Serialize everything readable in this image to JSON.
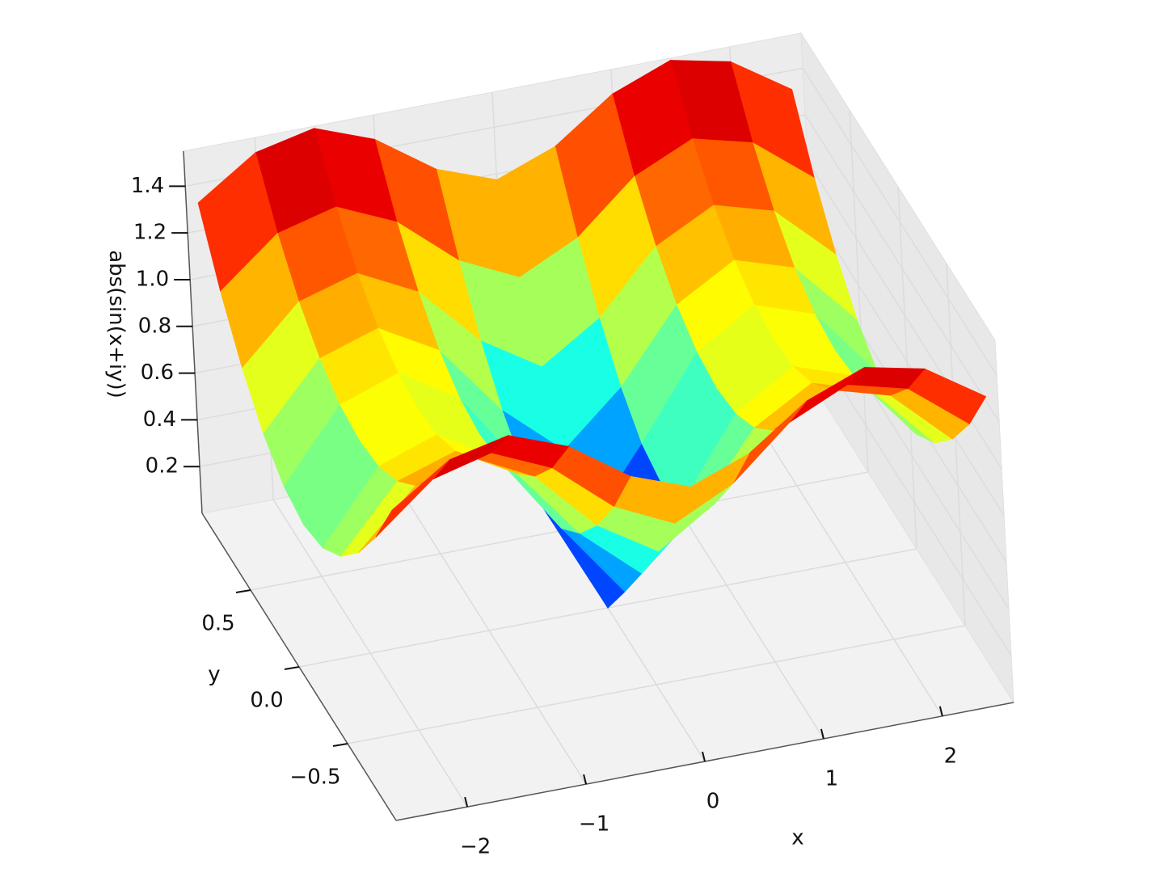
{
  "chart_data": {
    "type": "surface",
    "xlabel": "x",
    "ylabel": "y",
    "zlabel": "abs(sin(x+iy))",
    "colormap": "jet",
    "x": [
      -2.5,
      -2,
      -1.5,
      -1,
      -0.5,
      0,
      0.5,
      1,
      1.5,
      2,
      2.5
    ],
    "y": [
      -1,
      -0.8,
      -0.6,
      -0.4,
      -0.2,
      0,
      0.2,
      0.4,
      0.6,
      0.8,
      1
    ],
    "z": [
      [
        1.319,
        1.486,
        1.541,
        1.445,
        1.269,
        1.175,
        1.269,
        1.445,
        1.541,
        1.486,
        1.319
      ],
      [
        1.071,
        1.271,
        1.336,
        1.223,
        1.009,
        0.888,
        1.009,
        1.223,
        1.336,
        1.271,
        1.071
      ],
      [
        0.874,
        1.11,
        1.183,
        1.055,
        0.797,
        0.637,
        0.797,
        1.055,
        1.183,
        1.11,
        0.874
      ],
      [
        0.726,
        0.998,
        1.079,
        0.936,
        0.631,
        0.411,
        0.631,
        0.936,
        1.079,
        0.998,
        0.726
      ],
      [
        0.631,
        0.931,
        1.018,
        0.865,
        0.52,
        0.201,
        0.52,
        0.865,
        1.018,
        0.931,
        0.631
      ],
      [
        0.598,
        0.909,
        0.998,
        0.841,
        0.479,
        0,
        0.479,
        0.841,
        0.998,
        0.909,
        0.598
      ],
      [
        0.631,
        0.931,
        1.018,
        0.865,
        0.52,
        0.201,
        0.52,
        0.865,
        1.018,
        0.931,
        0.631
      ],
      [
        0.726,
        0.998,
        1.079,
        0.936,
        0.631,
        0.411,
        0.631,
        0.936,
        1.079,
        0.998,
        0.726
      ],
      [
        0.874,
        1.11,
        1.183,
        1.055,
        0.797,
        0.637,
        0.797,
        1.055,
        1.183,
        1.11,
        0.874
      ],
      [
        1.071,
        1.271,
        1.336,
        1.223,
        1.009,
        0.888,
        1.009,
        1.223,
        1.336,
        1.271,
        1.071
      ],
      [
        1.319,
        1.486,
        1.541,
        1.445,
        1.269,
        1.175,
        1.269,
        1.445,
        1.541,
        1.486,
        1.319
      ]
    ],
    "xlim": [
      -2.6,
      2.6
    ],
    "ylim": [
      -1,
      1
    ],
    "zlim": [
      0,
      1.55
    ],
    "xticks": [
      {
        "value": -2,
        "label": "−2"
      },
      {
        "value": -1,
        "label": "−1"
      },
      0,
      1,
      2
    ],
    "yticks": [
      {
        "value": -0.5,
        "label": "−0.5"
      },
      {
        "value": 0,
        "label": "0.0"
      },
      0.5
    ],
    "zticks": [
      0.2,
      0.4,
      0.6,
      0.8,
      {
        "value": 1,
        "label": "1.0"
      },
      1.2,
      1.4
    ],
    "grid": true
  }
}
